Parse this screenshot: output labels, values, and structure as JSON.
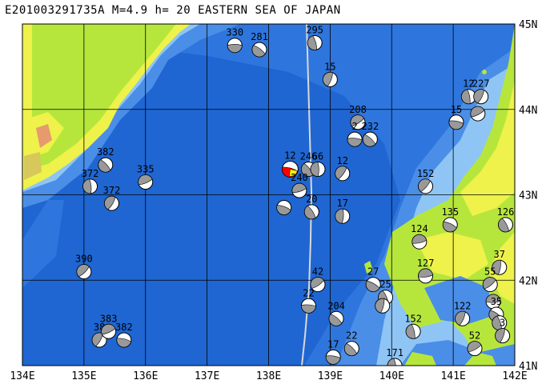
{
  "title": "E201003291735A M=4.9 h= 20 EASTERN SEA OF JAPAN",
  "lon_labels": [
    "134E",
    "135E",
    "136E",
    "137E",
    "138E",
    "139E",
    "140E",
    "141E",
    "142E"
  ],
  "lat_labels": [
    "45N",
    "44N",
    "43N",
    "42N",
    "41N"
  ],
  "lon_range": [
    134,
    142
  ],
  "lat_range": [
    41,
    45
  ],
  "colors": {
    "deep_sea": "#1f66d2",
    "mid_sea": "#3f86e6",
    "shelf": "#8ec5f5",
    "shallow": "#b9def8",
    "lowland": "#b6e63c",
    "land": "#eef24a",
    "upland": "#d6c85a",
    "mountain": "#e69a6e",
    "main_event": "#ff0000",
    "mechanism_shade": "#999999",
    "grid": "#000000",
    "track": "#d9d9d9"
  },
  "events": [
    {
      "lon": 137.45,
      "lat": 44.75,
      "depth": "330",
      "main": false
    },
    {
      "lon": 137.85,
      "lat": 44.7,
      "depth": "281",
      "main": false
    },
    {
      "lon": 138.75,
      "lat": 44.78,
      "depth": "295",
      "main": false
    },
    {
      "lon": 139.0,
      "lat": 44.35,
      "depth": "15",
      "main": false
    },
    {
      "lon": 139.45,
      "lat": 43.85,
      "depth": "208",
      "main": false
    },
    {
      "lon": 139.4,
      "lat": 43.65,
      "depth": "2",
      "main": false
    },
    {
      "lon": 139.65,
      "lat": 43.65,
      "depth": "232",
      "main": false
    },
    {
      "lon": 141.25,
      "lat": 44.15,
      "depth": "12",
      "main": false
    },
    {
      "lon": 141.45,
      "lat": 44.15,
      "depth": "227",
      "main": false
    },
    {
      "lon": 141.4,
      "lat": 43.95,
      "depth": "",
      "main": false
    },
    {
      "lon": 141.05,
      "lat": 43.85,
      "depth": "15",
      "main": false
    },
    {
      "lon": 135.35,
      "lat": 43.35,
      "depth": "382",
      "main": false
    },
    {
      "lon": 135.1,
      "lat": 43.1,
      "depth": "372",
      "main": false
    },
    {
      "lon": 135.45,
      "lat": 42.9,
      "depth": "372",
      "main": false
    },
    {
      "lon": 136.0,
      "lat": 43.15,
      "depth": "335",
      "main": false
    },
    {
      "lon": 138.35,
      "lat": 43.3,
      "depth": "12",
      "main": true
    },
    {
      "lon": 138.65,
      "lat": 43.3,
      "depth": "246",
      "main": false
    },
    {
      "lon": 138.8,
      "lat": 43.3,
      "depth": "66",
      "main": false
    },
    {
      "lon": 139.2,
      "lat": 43.25,
      "depth": "12",
      "main": false
    },
    {
      "lon": 138.5,
      "lat": 43.05,
      "depth": "240",
      "main": false
    },
    {
      "lon": 138.25,
      "lat": 42.85,
      "depth": "",
      "main": false
    },
    {
      "lon": 138.7,
      "lat": 42.8,
      "depth": "20",
      "main": false
    },
    {
      "lon": 139.2,
      "lat": 42.75,
      "depth": "17",
      "main": false
    },
    {
      "lon": 140.55,
      "lat": 43.1,
      "depth": "152",
      "main": false
    },
    {
      "lon": 140.45,
      "lat": 42.45,
      "depth": "124",
      "main": false
    },
    {
      "lon": 140.95,
      "lat": 42.65,
      "depth": "135",
      "main": false
    },
    {
      "lon": 141.85,
      "lat": 42.65,
      "depth": "126",
      "main": false
    },
    {
      "lon": 141.75,
      "lat": 42.15,
      "depth": "37",
      "main": false
    },
    {
      "lon": 135.0,
      "lat": 42.1,
      "depth": "390",
      "main": false
    },
    {
      "lon": 140.55,
      "lat": 42.05,
      "depth": "127",
      "main": false
    },
    {
      "lon": 139.7,
      "lat": 41.95,
      "depth": "27",
      "main": false
    },
    {
      "lon": 139.9,
      "lat": 41.8,
      "depth": "25",
      "main": false
    },
    {
      "lon": 139.85,
      "lat": 41.7,
      "depth": "",
      "main": false
    },
    {
      "lon": 141.6,
      "lat": 41.95,
      "depth": "55",
      "main": false
    },
    {
      "lon": 141.65,
      "lat": 41.75,
      "depth": "",
      "main": false
    },
    {
      "lon": 141.7,
      "lat": 41.6,
      "depth": "35",
      "main": false
    },
    {
      "lon": 141.75,
      "lat": 41.5,
      "depth": "",
      "main": false
    },
    {
      "lon": 141.8,
      "lat": 41.35,
      "depth": "3",
      "main": false
    },
    {
      "lon": 138.8,
      "lat": 41.95,
      "depth": "42",
      "main": false
    },
    {
      "lon": 138.65,
      "lat": 41.7,
      "depth": "22",
      "main": false
    },
    {
      "lon": 139.1,
      "lat": 41.55,
      "depth": "204",
      "main": false
    },
    {
      "lon": 140.35,
      "lat": 41.4,
      "depth": "152",
      "main": false
    },
    {
      "lon": 141.15,
      "lat": 41.55,
      "depth": "122",
      "main": false
    },
    {
      "lon": 141.35,
      "lat": 41.2,
      "depth": "52",
      "main": false
    },
    {
      "lon": 139.05,
      "lat": 41.1,
      "depth": "17",
      "main": false
    },
    {
      "lon": 139.35,
      "lat": 41.2,
      "depth": "22",
      "main": false
    },
    {
      "lon": 140.05,
      "lat": 41.0,
      "depth": "171",
      "main": false
    },
    {
      "lon": 135.25,
      "lat": 41.3,
      "depth": "38",
      "main": false
    },
    {
      "lon": 135.4,
      "lat": 41.4,
      "depth": "383",
      "main": false
    },
    {
      "lon": 135.65,
      "lat": 41.3,
      "depth": "382",
      "main": false
    }
  ]
}
